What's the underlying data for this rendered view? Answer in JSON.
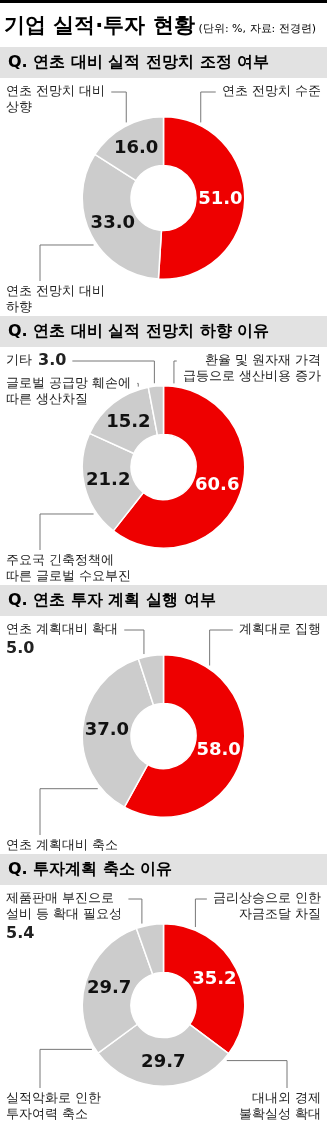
{
  "chart_data": [
    {
      "type": "donut",
      "title": "기업 실적·투자 현황",
      "subtitle": "Q. 연초 대비 실적 전망치 조정 여부",
      "annotations": [
        "(단위: %, 자료: 전경련)"
      ],
      "categories": [
        "연초 전망치 수준",
        "연초 전망치 대비 하향",
        "연초 전망치 대비 상향"
      ],
      "values": [
        51.0,
        33.0,
        16.0
      ],
      "colors": [
        "#ee0000",
        "#cccccc",
        "#cccccc"
      ],
      "value_labels": [
        "51.0",
        "33.0",
        "16.0"
      ]
    },
    {
      "type": "donut",
      "title": "Q. 연초 대비 실적 전망치 하향 이유",
      "categories": [
        "환율 및 원자재 가격 급등으로 생산비용 증가",
        "주요국 긴축정책에 따른 글로벌 수요부진",
        "글로벌 공급망 훼손에 따른 생산차질",
        "기타"
      ],
      "values": [
        60.6,
        21.2,
        15.2,
        3.0
      ],
      "colors": [
        "#ee0000",
        "#cccccc",
        "#cccccc",
        "#cccccc"
      ],
      "value_labels": [
        "60.6",
        "21.2",
        "15.2",
        "3.0"
      ]
    },
    {
      "type": "donut",
      "title": "Q. 연초 투자 계획 실행 여부",
      "categories": [
        "계획대로 집행",
        "연초 계획대비 축소",
        "연초 계획대비 확대"
      ],
      "values": [
        58.0,
        37.0,
        5.0
      ],
      "colors": [
        "#ee0000",
        "#cccccc",
        "#cccccc"
      ],
      "value_labels": [
        "58.0",
        "37.0",
        "5.0"
      ]
    },
    {
      "type": "donut",
      "title": "Q. 투자계획 축소 이유",
      "categories": [
        "금리상승으로 인한 자금조달 차질",
        "대내외 경제 불확실성 확대",
        "실적악화로 인한 투자여력 축소",
        "제품판매 부진으로 설비 등 확대 필요성"
      ],
      "values": [
        35.2,
        29.7,
        29.7,
        5.4
      ],
      "colors": [
        "#ee0000",
        "#cccccc",
        "#cccccc",
        "#cccccc"
      ],
      "value_labels": [
        "35.2",
        "29.7",
        "29.7",
        "5.4"
      ]
    }
  ]
}
